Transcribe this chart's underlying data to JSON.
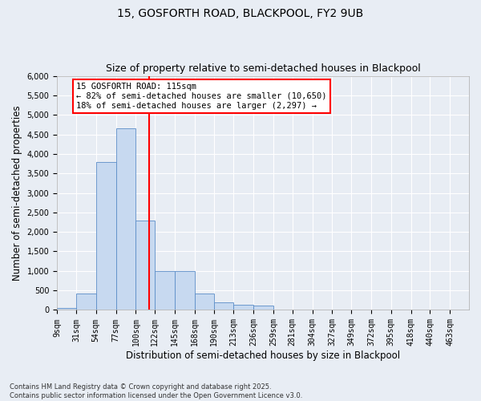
{
  "title_line1": "15, GOSFORTH ROAD, BLACKPOOL, FY2 9UB",
  "title_line2": "Size of property relative to semi-detached houses in Blackpool",
  "xlabel": "Distribution of semi-detached houses by size in Blackpool",
  "ylabel": "Number of semi-detached properties",
  "footnote": "Contains HM Land Registry data © Crown copyright and database right 2025.\nContains public sector information licensed under the Open Government Licence v3.0.",
  "bin_labels": [
    "9sqm",
    "31sqm",
    "54sqm",
    "77sqm",
    "100sqm",
    "122sqm",
    "145sqm",
    "168sqm",
    "190sqm",
    "213sqm",
    "236sqm",
    "259sqm",
    "281sqm",
    "304sqm",
    "327sqm",
    "349sqm",
    "372sqm",
    "395sqm",
    "418sqm",
    "440sqm",
    "463sqm"
  ],
  "bin_edges": [
    9,
    31,
    54,
    77,
    100,
    122,
    145,
    168,
    190,
    213,
    236,
    259,
    281,
    304,
    327,
    349,
    372,
    395,
    418,
    440,
    463
  ],
  "bar_heights": [
    50,
    430,
    3800,
    4650,
    2300,
    1000,
    1000,
    420,
    200,
    130,
    120,
    0,
    0,
    0,
    0,
    0,
    0,
    0,
    0,
    0,
    0
  ],
  "bar_color": "#c7d9f0",
  "bar_edge_color": "#5b8dc8",
  "vline_x": 115,
  "vline_color": "red",
  "annotation_text": "15 GOSFORTH ROAD: 115sqm\n← 82% of semi-detached houses are smaller (10,650)\n18% of semi-detached houses are larger (2,297) →",
  "ylim": [
    0,
    6000
  ],
  "yticks": [
    0,
    500,
    1000,
    1500,
    2000,
    2500,
    3000,
    3500,
    4000,
    4500,
    5000,
    5500,
    6000
  ],
  "background_color": "#e8edf4",
  "grid_color": "white",
  "title_fontsize": 10,
  "subtitle_fontsize": 9,
  "axis_label_fontsize": 8.5,
  "tick_fontsize": 7,
  "annot_fontsize": 7.5,
  "footnote_fontsize": 6
}
